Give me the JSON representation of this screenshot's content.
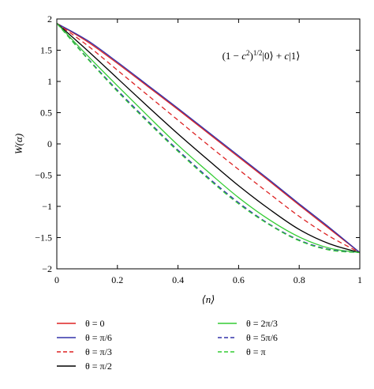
{
  "chart_data": {
    "type": "line",
    "title": "",
    "annotation": "(1 − c²)^{1/2}|0⟩ + c|1⟩",
    "xlabel": "⟨n⟩",
    "ylabel": "W(α)",
    "xlim": [
      0,
      1
    ],
    "ylim": [
      -2,
      2
    ],
    "xticks": [
      0,
      0.2,
      0.4,
      0.6,
      0.8,
      1
    ],
    "xtick_labels": [
      "0",
      "0.2",
      "0.4",
      "0.6",
      "0.8",
      "1"
    ],
    "yticks": [
      -2,
      -1.5,
      -1,
      -0.5,
      0,
      0.5,
      1,
      1.5,
      2
    ],
    "ytick_labels": [
      "−2",
      "−1.5",
      "−1",
      "−0.5",
      "0",
      "0.5",
      "1",
      "1.5",
      "2"
    ],
    "grid": false,
    "legend_position": "below",
    "x": [
      0,
      0.1,
      0.2,
      0.3,
      0.4,
      0.5,
      0.6,
      0.7,
      0.8,
      0.9,
      1
    ],
    "series": [
      {
        "name": "θ = 0",
        "color": "#dd2222",
        "dash": "solid",
        "values": [
          1.93,
          1.64,
          1.29,
          0.92,
          0.55,
          0.17,
          -0.21,
          -0.59,
          -0.98,
          -1.36,
          -1.74
        ]
      },
      {
        "name": "θ = π/6",
        "color": "#3333aa",
        "dash": "solid",
        "values": [
          1.93,
          1.66,
          1.31,
          0.94,
          0.57,
          0.19,
          -0.19,
          -0.57,
          -0.96,
          -1.34,
          -1.74
        ]
      },
      {
        "name": "θ = π/3",
        "color": "#dd2222",
        "dash": "dashed",
        "values": [
          1.93,
          1.58,
          1.18,
          0.78,
          0.38,
          -0.02,
          -0.41,
          -0.79,
          -1.16,
          -1.48,
          -1.74
        ]
      },
      {
        "name": "θ = π/2",
        "color": "#000000",
        "dash": "solid",
        "values": [
          1.93,
          1.5,
          1.05,
          0.6,
          0.16,
          -0.26,
          -0.67,
          -1.04,
          -1.37,
          -1.6,
          -1.74
        ]
      },
      {
        "name": "θ = 2π/3",
        "color": "#33cc33",
        "dash": "solid",
        "values": [
          1.93,
          1.42,
          0.93,
          0.45,
          -0.02,
          -0.45,
          -0.86,
          -1.21,
          -1.49,
          -1.67,
          -1.74
        ]
      },
      {
        "name": "θ = 5π/6",
        "color": "#3333aa",
        "dash": "dashed",
        "values": [
          1.93,
          1.38,
          0.86,
          0.37,
          -0.1,
          -0.54,
          -0.94,
          -1.28,
          -1.54,
          -1.69,
          -1.74
        ]
      },
      {
        "name": "θ = π",
        "color": "#33cc33",
        "dash": "dashed",
        "values": [
          1.93,
          1.37,
          0.84,
          0.35,
          -0.12,
          -0.56,
          -0.96,
          -1.29,
          -1.55,
          -1.7,
          -1.74
        ]
      }
    ]
  }
}
